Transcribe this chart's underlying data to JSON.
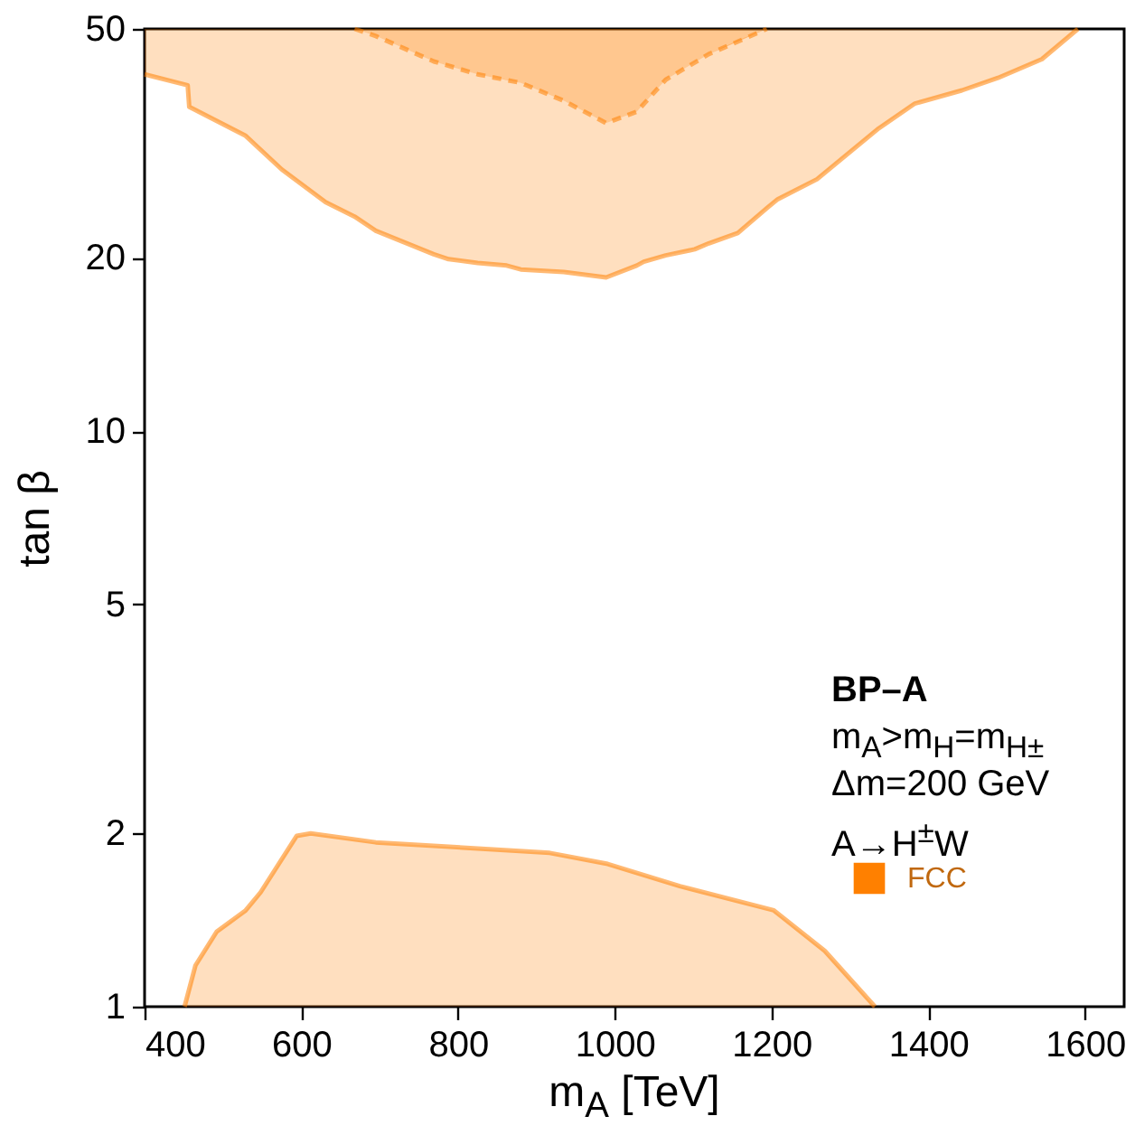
{
  "chart_data": {
    "type": "area",
    "xlabel": "m$_{A}$ [TeV]",
    "ylabel": "tan β",
    "annotations": [
      "BP–A",
      "m$_{A}$>m$_{H}$=m$_{H±}$",
      "Δm=200 GeV",
      "A→H$^{±}$W"
    ],
    "series": [
      {
        "name": "FCC",
        "type": "line",
        "color": "#ff8000",
        "line_style": "solid",
        "x": [
          400,
          455,
          457,
          529,
          575,
          631,
          668,
          695,
          769,
          788,
          825,
          862,
          880,
          935,
          989,
          1028,
          1037,
          1065,
          1102,
          1120,
          1157,
          1194,
          1208,
          1258,
          1337,
          1383,
          1443,
          1489,
          1545,
          1591
        ],
        "values": [
          41.7,
          39.9,
          36.6,
          32.6,
          28.5,
          25.0,
          23.6,
          22.3,
          20.3,
          19.9,
          19.6,
          19.4,
          19.1,
          18.9,
          18.5,
          19.4,
          19.7,
          20.2,
          20.7,
          21.2,
          22.1,
          24.4,
          25.3,
          27.4,
          33.6,
          37.1,
          39.1,
          41.1,
          44.3,
          50
        ],
        "lower": [
          41.7,
          39.9,
          36.6,
          32.6,
          28.5,
          25.0,
          23.6,
          22.3,
          20.3,
          19.9,
          19.6,
          19.4,
          19.1,
          18.9,
          18.5,
          19.4,
          19.7,
          20.2,
          20.7,
          21.2,
          22.1,
          24.4,
          25.3,
          27.4,
          33.6,
          37.1,
          39.1,
          41.1,
          44.3,
          50
        ],
        "upper": [
          50,
          50,
          50,
          50,
          50,
          50,
          50,
          48.6,
          43.9,
          43.2,
          41.7,
          40.8,
          40.3,
          37.5,
          34.3,
          35.9,
          37.0,
          40.8,
          43.7,
          45.2,
          47.8,
          50,
          50,
          50,
          50,
          50,
          50,
          50,
          50,
          50
        ]
      },
      {
        "type": "line",
        "color": "#ff8000",
        "line_style": "dashed",
        "lower": [
          50,
          48.6,
          43.9,
          41.7,
          40.3,
          37.5,
          34.3,
          35.9,
          40.8,
          45.2,
          50
        ],
        "x": [
          668,
          695,
          769,
          825,
          880,
          935,
          989,
          1028,
          1065,
          1120,
          1194
        ],
        "values": [
          50,
          48.6,
          43.9,
          41.7,
          40.3,
          37.5,
          34.3,
          35.9,
          40.8,
          45.2,
          50
        ],
        "upper": [
          50,
          50,
          50,
          50,
          50,
          50,
          50,
          50,
          50,
          50,
          50
        ]
      },
      {
        "color": "#ff8000",
        "line_style": "solid",
        "x": [
          451,
          465,
          492,
          529,
          548,
          594,
          612,
          695,
          806,
          917,
          991,
          1083,
          1203,
          1268,
          1332
        ],
        "values": [
          1,
          1.18,
          1.35,
          1.47,
          1.58,
          1.98,
          2.0,
          1.93,
          1.89,
          1.85,
          1.77,
          1.62,
          1.47,
          1.25,
          1
        ]
      }
    ],
    "xlim": [
      400,
      1650
    ],
    "xticks": [
      400,
      600,
      800,
      1000,
      1200,
      1400,
      1600
    ],
    "ylim": [
      1,
      50
    ],
    "yticks": [
      1,
      2,
      5,
      10,
      20,
      50
    ],
    "log": "y",
    "grid": false,
    "legend": "bottom right",
    "marker": "none"
  }
}
